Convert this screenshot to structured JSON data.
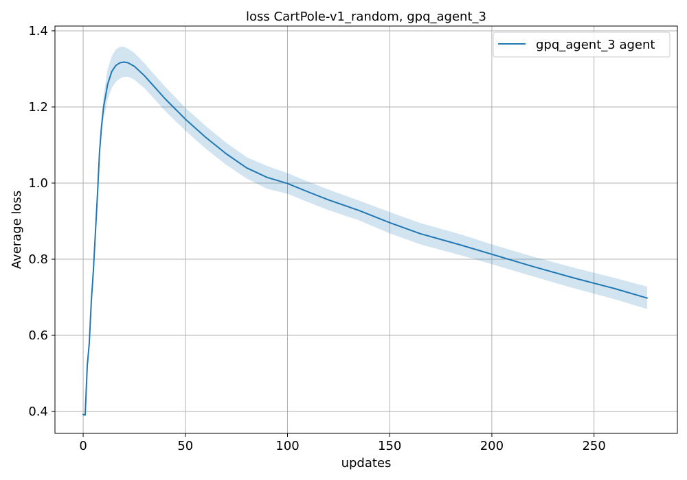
{
  "chart_data": {
    "type": "line",
    "title": "loss CartPole-v1_random, gpq_agent_3",
    "xlabel": "updates",
    "ylabel": "Average loss",
    "xlim": [
      -13.8,
      290.8
    ],
    "ylim": [
      0.3425,
      1.4125
    ],
    "xticks": [
      0,
      50,
      100,
      150,
      200,
      250
    ],
    "yticks": [
      0.4,
      0.6,
      0.8,
      1.0,
      1.2,
      1.4
    ],
    "xtick_labels": [
      "0",
      "50",
      "100",
      "150",
      "200",
      "250"
    ],
    "ytick_labels": [
      "0.4",
      "0.6",
      "0.8",
      "1.0",
      "1.2",
      "1.4"
    ],
    "grid": true,
    "legend_position": "top-right",
    "series": [
      {
        "name": "gpq_agent_3 agent",
        "color": "#1f77b4",
        "band_color": "#1f77b4",
        "x": [
          0,
          1,
          2,
          3,
          4,
          5,
          6,
          7,
          8,
          9,
          10,
          12,
          14,
          16,
          18,
          20,
          22,
          25,
          30,
          35,
          40,
          50,
          60,
          70,
          80,
          90,
          100,
          110,
          120,
          135,
          150,
          165,
          185,
          200,
          220,
          240,
          260,
          276
        ],
        "y": [
          0.392,
          0.391,
          0.52,
          0.58,
          0.69,
          0.77,
          0.87,
          0.97,
          1.08,
          1.15,
          1.2,
          1.26,
          1.293,
          1.309,
          1.316,
          1.318,
          1.316,
          1.307,
          1.282,
          1.252,
          1.222,
          1.168,
          1.12,
          1.077,
          1.04,
          1.015,
          0.999,
          0.977,
          0.956,
          0.928,
          0.896,
          0.867,
          0.837,
          0.813,
          0.781,
          0.751,
          0.723,
          0.698
        ],
        "lower": [
          0.392,
          0.391,
          0.52,
          0.58,
          0.69,
          0.77,
          0.87,
          0.97,
          1.07,
          1.13,
          1.17,
          1.22,
          1.25,
          1.266,
          1.275,
          1.279,
          1.279,
          1.272,
          1.249,
          1.22,
          1.19,
          1.138,
          1.09,
          1.048,
          1.012,
          0.985,
          0.972,
          0.95,
          0.929,
          0.902,
          0.868,
          0.839,
          0.81,
          0.787,
          0.755,
          0.724,
          0.695,
          0.669
        ],
        "upper": [
          0.392,
          0.391,
          0.52,
          0.58,
          0.69,
          0.77,
          0.87,
          0.97,
          1.09,
          1.17,
          1.23,
          1.3,
          1.333,
          1.351,
          1.358,
          1.358,
          1.353,
          1.342,
          1.315,
          1.284,
          1.254,
          1.198,
          1.15,
          1.106,
          1.068,
          1.045,
          1.026,
          1.004,
          0.983,
          0.954,
          0.924,
          0.895,
          0.865,
          0.839,
          0.807,
          0.778,
          0.751,
          0.728
        ]
      }
    ]
  }
}
